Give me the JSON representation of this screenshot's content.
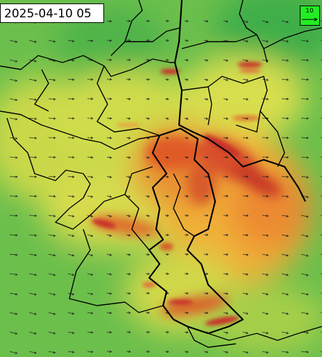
{
  "timestamp": "2025-04-10 05",
  "wind_legend": {
    "label": "10"
  }
}
